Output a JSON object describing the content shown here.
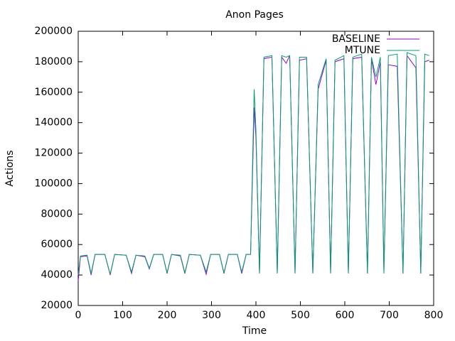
{
  "chart_data": {
    "type": "line",
    "title": "Anon Pages",
    "x_label": "Time",
    "y_label": "Actions",
    "xlim": [
      0,
      800
    ],
    "xticks": [
      0,
      100,
      200,
      300,
      400,
      500,
      600,
      700,
      800
    ],
    "ylim": [
      20000,
      200000
    ],
    "yticks": [
      20000,
      40000,
      60000,
      80000,
      100000,
      120000,
      140000,
      160000,
      180000,
      200000
    ],
    "legend": "top-right",
    "grid": false,
    "x": [
      0,
      5,
      20,
      29,
      38,
      60,
      72,
      82,
      108,
      120,
      130,
      150,
      160,
      170,
      190,
      200,
      210,
      230,
      240,
      250,
      275,
      288,
      298,
      318,
      328,
      338,
      358,
      368,
      378,
      388,
      396,
      400,
      408,
      418,
      436,
      448,
      458,
      468,
      476,
      488,
      498,
      514,
      528,
      540,
      558,
      568,
      578,
      598,
      608,
      618,
      638,
      651,
      660,
      670,
      680,
      688,
      698,
      718,
      731,
      740,
      760,
      771,
      780,
      790
    ],
    "series": [
      {
        "name": "BASELINE",
        "color": "#9400d3",
        "values": [
          36000,
          52000,
          52500,
          40000,
          53500,
          53500,
          40000,
          53500,
          53000,
          41000,
          53000,
          52000,
          44000,
          53500,
          53500,
          41000,
          53500,
          52500,
          41000,
          53500,
          53000,
          40500,
          53500,
          53500,
          41000,
          53500,
          53500,
          41000,
          53500,
          53500,
          150000,
          130000,
          41000,
          182000,
          183000,
          41000,
          183000,
          179000,
          184000,
          41000,
          181000,
          182000,
          41000,
          162000,
          181000,
          41000,
          180000,
          182000,
          41000,
          182000,
          183000,
          41000,
          182000,
          165000,
          180000,
          42000,
          178000,
          177000,
          41000,
          184000,
          176000,
          41000,
          180000,
          181000
        ]
      },
      {
        "name": "MTUNE",
        "color": "#009e73",
        "values": [
          40000,
          52500,
          53000,
          41000,
          53500,
          53500,
          40500,
          53500,
          53000,
          42000,
          53000,
          52500,
          44500,
          53500,
          53500,
          41500,
          53500,
          53000,
          41500,
          53500,
          53000,
          42000,
          53500,
          53500,
          41500,
          53500,
          53500,
          42000,
          53500,
          53500,
          162000,
          135000,
          41000,
          183000,
          184000,
          41000,
          184000,
          183000,
          184000,
          41000,
          183000,
          183000,
          41000,
          165000,
          182000,
          41000,
          181000,
          184000,
          41000,
          183000,
          185000,
          41000,
          183000,
          170000,
          183000,
          41000,
          184000,
          185000,
          41000,
          186000,
          184000,
          41000,
          185000,
          184000
        ]
      }
    ]
  }
}
